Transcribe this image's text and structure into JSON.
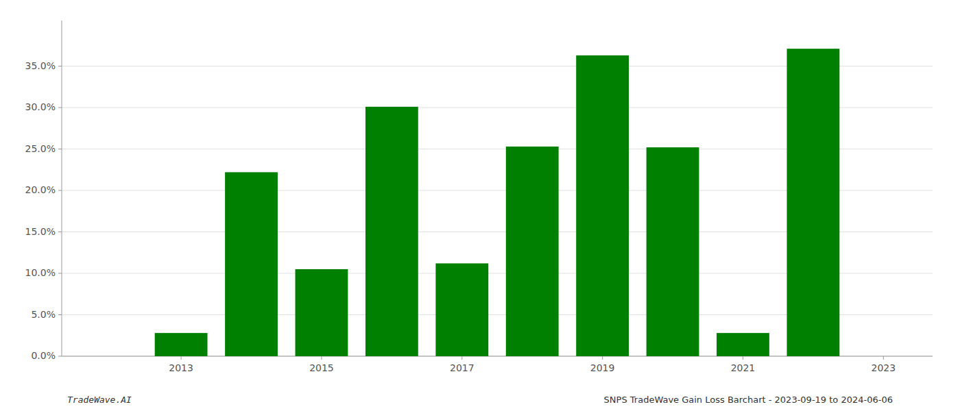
{
  "chart_data": {
    "type": "bar",
    "x": [
      2013,
      2014,
      2015,
      2016,
      2017,
      2018,
      2019,
      2020,
      2021,
      2022
    ],
    "values": [
      0.028,
      0.222,
      0.105,
      0.301,
      0.112,
      0.253,
      0.363,
      0.252,
      0.028,
      0.371
    ],
    "color": "#008000",
    "xlim": [
      2011.3,
      2023.7
    ],
    "xticks": [
      2013,
      2015,
      2017,
      2019,
      2021,
      2023
    ],
    "ylim": [
      0.0,
      0.405
    ],
    "yticks": [
      {
        "value": 0.0,
        "label": "0.0%"
      },
      {
        "value": 0.05,
        "label": "5.0%"
      },
      {
        "value": 0.1,
        "label": "10.0%"
      },
      {
        "value": 0.15,
        "label": "15.0%"
      },
      {
        "value": 0.2,
        "label": "20.0%"
      },
      {
        "value": 0.25,
        "label": "25.0%"
      },
      {
        "value": 0.3,
        "label": "30.0%"
      },
      {
        "value": 0.35,
        "label": "35.0%"
      }
    ],
    "grid": true,
    "annotations": [
      "TradeWave.AI",
      "SNPS TradeWave Gain Loss Barchart - 2023-09-19 to 2024-06-06"
    ]
  }
}
